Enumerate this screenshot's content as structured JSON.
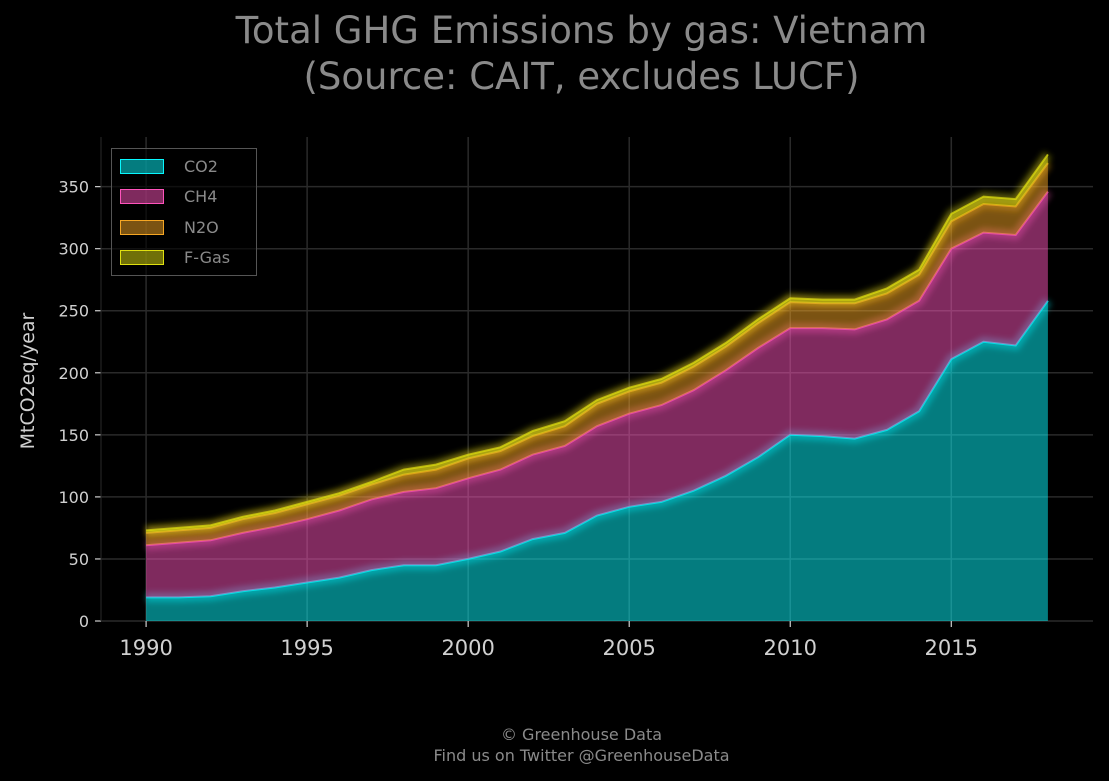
{
  "title_lines": [
    "Total GHG Emissions by gas: Vietnam",
    "(Source: CAIT, excludes LUCF)"
  ],
  "footer_lines": [
    "© Greenhouse Data",
    "Find us on Twitter @GreenhouseData"
  ],
  "colors": {
    "CO2": "#08f7fe",
    "CH4": "#fe53bb",
    "N2O": "#f5a623",
    "F-Gas": "#e0e010",
    "background": "#000000",
    "grid": "#2a2a2a",
    "text": "#d0d0d0",
    "title": "#8a8a8a"
  },
  "chart_data": {
    "type": "area",
    "stacked": true,
    "title": "Total GHG Emissions by gas: Vietnam\n(Source: CAIT, excludes LUCF)",
    "xlabel": "",
    "ylabel": "MtCO2eq/year",
    "xlim": [
      1988.6,
      2019.4
    ],
    "ylim": [
      0,
      390
    ],
    "xticks": [
      1990,
      1995,
      2000,
      2005,
      2010,
      2015
    ],
    "yticks": [
      0,
      50,
      100,
      150,
      200,
      250,
      300,
      350
    ],
    "grid": true,
    "legend_position": "top-left",
    "x": [
      1990,
      1991,
      1992,
      1993,
      1994,
      1995,
      1996,
      1997,
      1998,
      1999,
      2000,
      2001,
      2002,
      2003,
      2004,
      2005,
      2006,
      2007,
      2008,
      2009,
      2010,
      2011,
      2012,
      2013,
      2014,
      2015,
      2016,
      2017,
      2018
    ],
    "series": [
      {
        "name": "CO2",
        "values": [
          19,
          19,
          20,
          24,
          27,
          31,
          35,
          41,
          45,
          45,
          50,
          56,
          66,
          71,
          85,
          92,
          96,
          105,
          117,
          132,
          150,
          149,
          147,
          154,
          169,
          211,
          225,
          222,
          258
        ]
      },
      {
        "name": "CH4",
        "values": [
          42,
          44,
          45,
          47,
          49,
          51,
          54,
          57,
          59,
          62,
          65,
          66,
          68,
          70,
          72,
          75,
          78,
          81,
          85,
          88,
          86,
          87,
          88,
          89,
          89,
          89,
          88,
          89,
          88
        ]
      },
      {
        "name": "N2O",
        "values": [
          10,
          10,
          10,
          11,
          11,
          12,
          12,
          12,
          14,
          15,
          16,
          15,
          15,
          16,
          18,
          18,
          18,
          19,
          19,
          20,
          21,
          20,
          21,
          21,
          21,
          22,
          23,
          23,
          23
        ]
      },
      {
        "name": "F-Gas",
        "values": [
          2,
          2,
          2,
          2,
          2,
          2,
          2,
          2,
          4,
          4,
          3,
          3,
          4,
          4,
          3,
          3,
          3,
          3,
          3,
          3,
          3,
          3,
          3,
          4,
          4,
          6,
          6,
          6,
          7
        ]
      }
    ]
  }
}
